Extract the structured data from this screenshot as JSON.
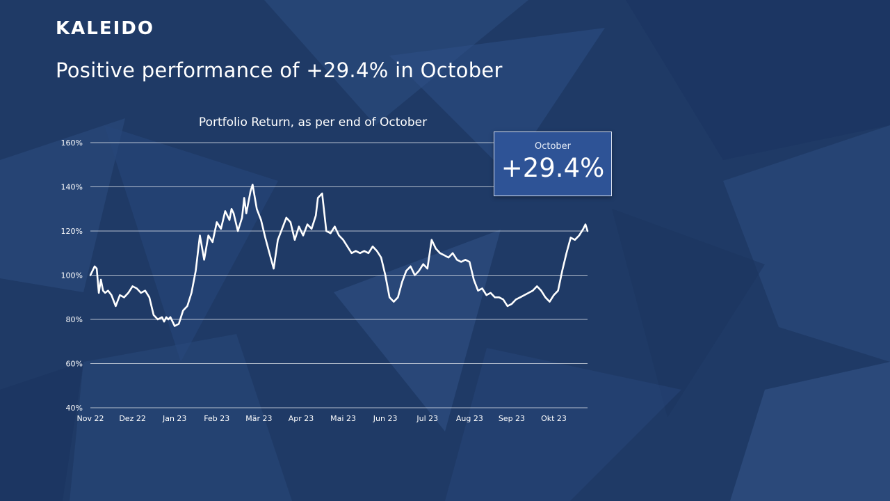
{
  "brand": "KALEIDO",
  "headline": "Positive performance of +29.4% in October",
  "callout": {
    "label": "October",
    "value": "+29.4%"
  },
  "colors": {
    "background": "#1f3a66",
    "callout": "#2e5396",
    "line": "#ffffff"
  },
  "chart_data": {
    "type": "line",
    "title": "Portfolio Return, as per end of October",
    "xlabel": "",
    "ylabel": "",
    "ylim": [
      40,
      160
    ],
    "yticks": [
      40,
      60,
      80,
      100,
      120,
      140,
      160
    ],
    "ytick_labels": [
      "40%",
      "60%",
      "80%",
      "100%",
      "120%",
      "140%",
      "160%"
    ],
    "xticks": [
      "Nov 22",
      "Dez 22",
      "Jan 23",
      "Feb 23",
      "Mär 23",
      "Apr 23",
      "Mai 23",
      "Jun 23",
      "Jul 23",
      "Aug 23",
      "Sep 23",
      "Okt 23"
    ],
    "x_range": [
      0,
      11.8
    ],
    "grid": true,
    "legend": "none",
    "series": [
      {
        "x": [
          0,
          0.1,
          0.15,
          0.2,
          0.25,
          0.3,
          0.35,
          0.42,
          0.5,
          0.6,
          0.7,
          0.8,
          0.9,
          1.0,
          1.1,
          1.2,
          1.3,
          1.4,
          1.5,
          1.6,
          1.7,
          1.75,
          1.8,
          1.85,
          1.9,
          2.0,
          2.1,
          2.2,
          2.3,
          2.4,
          2.5,
          2.6,
          2.7,
          2.8,
          2.9,
          3.0,
          3.1,
          3.2,
          3.3,
          3.35,
          3.4,
          3.5,
          3.6,
          3.65,
          3.7,
          3.8,
          3.85,
          3.95,
          4.05,
          4.15,
          4.25,
          4.35,
          4.45,
          4.55,
          4.65,
          4.75,
          4.85,
          4.95,
          5.05,
          5.15,
          5.25,
          5.35,
          5.4,
          5.5,
          5.6,
          5.7,
          5.8,
          5.9,
          6.0,
          6.1,
          6.2,
          6.3,
          6.4,
          6.5,
          6.6,
          6.7,
          6.8,
          6.9,
          7.0,
          7.1,
          7.2,
          7.3,
          7.4,
          7.5,
          7.6,
          7.7,
          7.8,
          7.9,
          8.0,
          8.1,
          8.2,
          8.3,
          8.4,
          8.5,
          8.6,
          8.7,
          8.8,
          8.9,
          9.0,
          9.1,
          9.2,
          9.3,
          9.4,
          9.5,
          9.6,
          9.7,
          9.8,
          9.9,
          10.0,
          10.1,
          10.2,
          10.3,
          10.4,
          10.5,
          10.6,
          10.7,
          10.8,
          10.9,
          11.0,
          11.1,
          11.2,
          11.3,
          11.4,
          11.5,
          11.6,
          11.7,
          11.75,
          11.8
        ],
        "values": [
          100,
          104,
          103,
          92,
          98,
          93,
          92,
          93,
          91,
          86,
          91,
          90,
          92,
          95,
          94,
          92,
          93,
          90,
          82,
          80,
          81,
          79,
          81,
          80,
          81,
          77,
          78,
          84,
          86,
          92,
          102,
          118,
          107,
          118,
          115,
          124,
          121,
          129,
          125,
          130,
          128,
          120,
          126,
          135,
          128,
          138,
          141,
          130,
          125,
          117,
          110,
          103,
          116,
          121,
          126,
          124,
          116,
          122,
          118,
          123,
          121,
          127,
          135,
          137,
          120,
          119,
          122,
          118,
          116,
          113,
          110,
          111,
          110,
          111,
          110,
          113,
          111,
          108,
          100,
          90,
          88,
          90,
          97,
          102,
          104,
          100,
          102,
          105,
          103,
          116,
          112,
          110,
          109,
          108,
          110,
          107,
          106,
          107,
          106,
          98,
          93,
          94,
          91,
          92,
          90,
          90,
          89,
          86,
          87,
          89,
          90,
          91,
          92,
          93,
          95,
          93,
          90,
          88,
          91,
          93,
          102,
          110,
          117,
          116,
          118,
          121,
          123,
          120
        ]
      }
    ]
  }
}
